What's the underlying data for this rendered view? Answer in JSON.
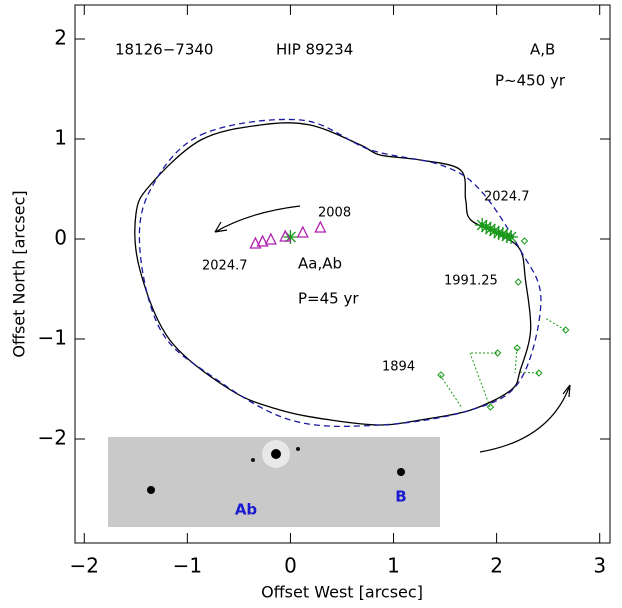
{
  "chart_data": {
    "type": "orbit",
    "xlabel": "Offset West [arcsec]",
    "ylabel": "Offset North [arcsec]",
    "xlim": [
      -2.09,
      3.1
    ],
    "ylim": [
      -3.04,
      2.34
    ],
    "xticks": [
      {
        "value": -2,
        "label": "−2"
      },
      {
        "value": -1,
        "label": "−1"
      },
      0,
      1,
      2,
      3
    ],
    "yticks": [
      {
        "value": -2,
        "label": "−2"
      },
      {
        "value": -1,
        "label": "−1"
      },
      0,
      1,
      2
    ],
    "series": [
      {
        "kind": "line",
        "style": "solid",
        "color": "#000000",
        "x": [
          0.87,
          1.26,
          1.65,
          1.7,
          1.75,
          2.04,
          2.23,
          2.28,
          2.33,
          2.23,
          2.14,
          1.75,
          1.26,
          0.87,
          0.39,
          -0.1,
          -0.58,
          -1.17,
          -1.46,
          -1.5,
          -1.36,
          -0.87,
          -0.29,
          0.19,
          0.68
        ],
        "values": [
          0.84,
          0.79,
          0.69,
          0.39,
          0.19,
          0.04,
          -0.11,
          -0.41,
          -0.91,
          -1.31,
          -1.51,
          -1.71,
          -1.81,
          -1.86,
          -1.81,
          -1.71,
          -1.51,
          -1.01,
          -0.31,
          0.24,
          0.54,
          0.99,
          1.14,
          1.14,
          0.94
        ]
      },
      {
        "kind": "line",
        "style": "dashed",
        "color": "#1a1aa0",
        "x": [
          -0.87,
          0.1,
          0.78,
          1.46,
          1.84,
          2.23,
          2.43,
          2.23,
          1.75,
          0.87,
          0.0,
          -0.78,
          -1.26,
          -1.46,
          -1.36
        ],
        "values": [
          1.04,
          1.19,
          0.89,
          0.74,
          0.49,
          -0.11,
          -0.61,
          -1.41,
          -1.71,
          -1.86,
          -1.81,
          -1.36,
          -0.91,
          -0.11,
          0.49
        ]
      },
      {
        "kind": "asterisk",
        "color": "#1a9a1a",
        "x": [
          1.86,
          1.9,
          1.94,
          1.98,
          2.02,
          2.06,
          2.1,
          2.14,
          0.0
        ],
        "values": [
          0.14,
          0.12,
          0.1,
          0.08,
          0.06,
          0.05,
          0.03,
          0.02,
          0.02
        ]
      },
      {
        "kind": "diamond",
        "color": "#1a9a1a",
        "x": [
          2.67,
          2.01,
          2.2,
          2.41,
          1.94,
          1.46,
          2.21,
          2.12,
          2.27
        ],
        "values": [
          -0.91,
          -1.14,
          -1.09,
          -1.34,
          -1.68,
          -1.36,
          -0.43,
          0.02,
          -0.02
        ]
      },
      {
        "kind": "triangle",
        "color": "#b01fb0",
        "x": [
          0.29,
          0.12,
          -0.05,
          -0.19,
          -0.27,
          -0.34
        ],
        "values": [
          0.11,
          0.06,
          0.02,
          -0.01,
          -0.03,
          -0.05
        ]
      }
    ],
    "annotations": [
      "18126−7340",
      "HIP 89234",
      "A,B",
      "P~450 yr",
      "2024.7",
      "2008",
      "2024.7",
      "1991.25",
      "Aa,Ab",
      "P=45 yr",
      "1894"
    ],
    "inset_labels": [
      "Ab",
      "B"
    ]
  }
}
